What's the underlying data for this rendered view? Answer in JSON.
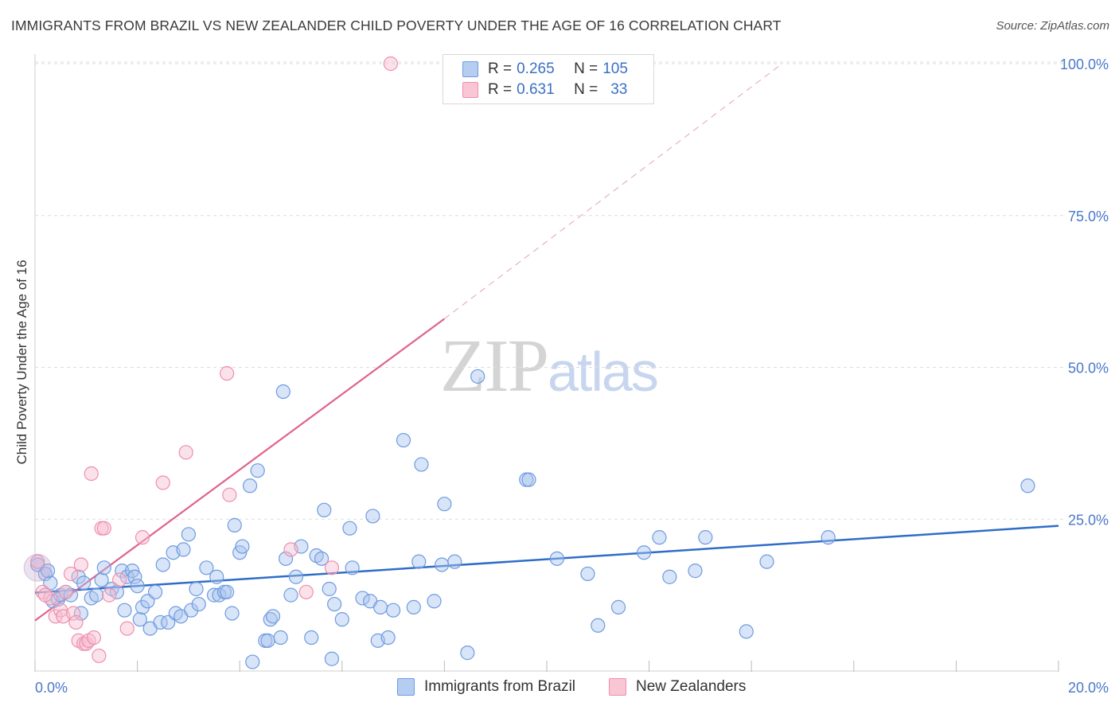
{
  "title": "IMMIGRANTS FROM BRAZIL VS NEW ZEALANDER CHILD POVERTY UNDER THE AGE OF 16 CORRELATION CHART",
  "source": "Source: ZipAtlas.com",
  "watermark": {
    "zip": "ZIP",
    "atlas": "atlas"
  },
  "legend": {
    "rows": [
      {
        "r_label": "R = ",
        "r_value": "0.265",
        "n_label": "N = ",
        "n_value": "105"
      },
      {
        "r_label": "R = ",
        "r_value": "0.631",
        "n_label": "N = ",
        "n_value": "33"
      }
    ]
  },
  "bottom_legend": [
    "Immigrants from Brazil",
    "New Zealanders"
  ],
  "colors": {
    "blue": "#6e9be0",
    "blue_fill": "#a9c4ee",
    "blue_line": "#2f6dc9",
    "pink": "#ee8fad",
    "pink_fill": "#f6bfd0",
    "pink_line": "#e0638c",
    "grid": "#dddddd",
    "tick": "#4a78c9"
  },
  "chart_data": {
    "type": "scatter",
    "title": "IMMIGRANTS FROM BRAZIL VS NEW ZEALANDER CHILD POVERTY UNDER THE AGE OF 16 CORRELATION CHART",
    "xlabel": "",
    "ylabel": "Child Poverty Under the Age of 16",
    "xlim": [
      0,
      20
    ],
    "ylim": [
      0,
      100
    ],
    "x_ticks": [
      "0.0%",
      "20.0%"
    ],
    "y_ticks": [
      "25.0%",
      "50.0%",
      "75.0%",
      "100.0%"
    ],
    "series": [
      {
        "name": "Immigrants from Brazil",
        "r": 0.265,
        "n": 105,
        "trend": {
          "x0": 0,
          "y0": 12.9,
          "x1": 20,
          "y1": 23.9
        },
        "points": [
          [
            0.05,
            17.5
          ],
          [
            0.2,
            16.0
          ],
          [
            0.3,
            14.5
          ],
          [
            0.35,
            11.5
          ],
          [
            0.45,
            11.8
          ],
          [
            0.5,
            12.5
          ],
          [
            0.6,
            13.0
          ],
          [
            0.7,
            12.5
          ],
          [
            0.85,
            15.5
          ],
          [
            0.9,
            9.5
          ],
          [
            0.95,
            14.5
          ],
          [
            1.1,
            12.0
          ],
          [
            1.2,
            12.5
          ],
          [
            1.3,
            15.0
          ],
          [
            1.35,
            17.0
          ],
          [
            1.5,
            13.5
          ],
          [
            1.6,
            13.0
          ],
          [
            1.7,
            16.5
          ],
          [
            1.8,
            15.5
          ],
          [
            1.9,
            16.5
          ],
          [
            1.95,
            15.5
          ],
          [
            2.0,
            14.0
          ],
          [
            1.75,
            10.0
          ],
          [
            2.05,
            8.5
          ],
          [
            2.1,
            10.5
          ],
          [
            2.2,
            11.5
          ],
          [
            2.25,
            7.0
          ],
          [
            2.35,
            13.0
          ],
          [
            2.5,
            17.5
          ],
          [
            2.45,
            8.0
          ],
          [
            2.6,
            8.0
          ],
          [
            2.7,
            19.5
          ],
          [
            2.75,
            9.5
          ],
          [
            2.85,
            9.0
          ],
          [
            2.9,
            20.0
          ],
          [
            3.0,
            22.5
          ],
          [
            3.05,
            10.0
          ],
          [
            3.15,
            13.5
          ],
          [
            3.2,
            11.0
          ],
          [
            3.35,
            17.0
          ],
          [
            3.5,
            12.5
          ],
          [
            3.55,
            15.5
          ],
          [
            3.6,
            12.5
          ],
          [
            3.7,
            13.0
          ],
          [
            3.75,
            13.0
          ],
          [
            3.85,
            9.5
          ],
          [
            3.9,
            24.0
          ],
          [
            4.0,
            19.5
          ],
          [
            4.05,
            20.5
          ],
          [
            4.2,
            30.5
          ],
          [
            4.25,
            1.5
          ],
          [
            4.35,
            33.0
          ],
          [
            4.5,
            5.0
          ],
          [
            4.6,
            8.5
          ],
          [
            4.55,
            5.0
          ],
          [
            4.65,
            9.0
          ],
          [
            4.8,
            5.5
          ],
          [
            4.85,
            46.0
          ],
          [
            4.9,
            18.5
          ],
          [
            5.0,
            12.5
          ],
          [
            5.1,
            15.5
          ],
          [
            5.2,
            20.5
          ],
          [
            5.4,
            5.5
          ],
          [
            5.5,
            19.0
          ],
          [
            5.6,
            18.5
          ],
          [
            5.65,
            26.5
          ],
          [
            5.75,
            13.5
          ],
          [
            5.8,
            2.0
          ],
          [
            5.85,
            11.0
          ],
          [
            6.0,
            8.5
          ],
          [
            6.2,
            17.0
          ],
          [
            6.15,
            23.5
          ],
          [
            6.4,
            12.0
          ],
          [
            6.55,
            11.5
          ],
          [
            6.6,
            25.5
          ],
          [
            6.7,
            5.0
          ],
          [
            6.75,
            10.5
          ],
          [
            6.9,
            5.5
          ],
          [
            7.0,
            10.0
          ],
          [
            7.2,
            38.0
          ],
          [
            7.4,
            10.5
          ],
          [
            7.5,
            18.0
          ],
          [
            7.55,
            34.0
          ],
          [
            7.8,
            11.5
          ],
          [
            7.95,
            17.5
          ],
          [
            8.0,
            27.5
          ],
          [
            8.2,
            18.0
          ],
          [
            8.45,
            3.0
          ],
          [
            8.65,
            48.5
          ],
          [
            9.6,
            31.5
          ],
          [
            9.65,
            31.5
          ],
          [
            10.2,
            18.5
          ],
          [
            10.8,
            16.0
          ],
          [
            11.0,
            7.5
          ],
          [
            11.4,
            10.5
          ],
          [
            11.9,
            19.5
          ],
          [
            12.2,
            22.0
          ],
          [
            12.4,
            15.5
          ],
          [
            12.9,
            16.5
          ],
          [
            13.1,
            22.0
          ],
          [
            13.9,
            6.5
          ],
          [
            14.3,
            18.0
          ],
          [
            15.5,
            22.0
          ],
          [
            19.4,
            30.5
          ],
          [
            0.25,
            16.5
          ]
        ]
      },
      {
        "name": "New Zealanders",
        "r": 0.631,
        "n": 33,
        "trend": {
          "x0": 0,
          "y0": 8.3,
          "x1": 8.0,
          "y1": 58.0,
          "dash_x1": 14.6,
          "dash_y1": 100
        },
        "points": [
          [
            0.05,
            18.0
          ],
          [
            0.15,
            13.0
          ],
          [
            0.3,
            12.0
          ],
          [
            0.4,
            9.0
          ],
          [
            0.5,
            10.0
          ],
          [
            0.55,
            9.0
          ],
          [
            0.6,
            13.0
          ],
          [
            0.7,
            16.0
          ],
          [
            0.75,
            9.5
          ],
          [
            0.8,
            8.0
          ],
          [
            0.85,
            5.0
          ],
          [
            0.9,
            17.5
          ],
          [
            0.95,
            4.5
          ],
          [
            1.0,
            4.5
          ],
          [
            1.05,
            5.0
          ],
          [
            1.1,
            32.5
          ],
          [
            1.15,
            5.5
          ],
          [
            1.25,
            2.5
          ],
          [
            1.3,
            23.5
          ],
          [
            1.35,
            23.5
          ],
          [
            1.45,
            12.5
          ],
          [
            1.65,
            15.0
          ],
          [
            1.8,
            7.0
          ],
          [
            2.1,
            22.0
          ],
          [
            2.5,
            31.0
          ],
          [
            2.95,
            36.0
          ],
          [
            3.75,
            49.0
          ],
          [
            3.8,
            29.0
          ],
          [
            5.0,
            20.0
          ],
          [
            5.3,
            13.0
          ],
          [
            5.8,
            17.0
          ],
          [
            6.95,
            100.0
          ],
          [
            0.2,
            12.5
          ]
        ]
      }
    ]
  }
}
